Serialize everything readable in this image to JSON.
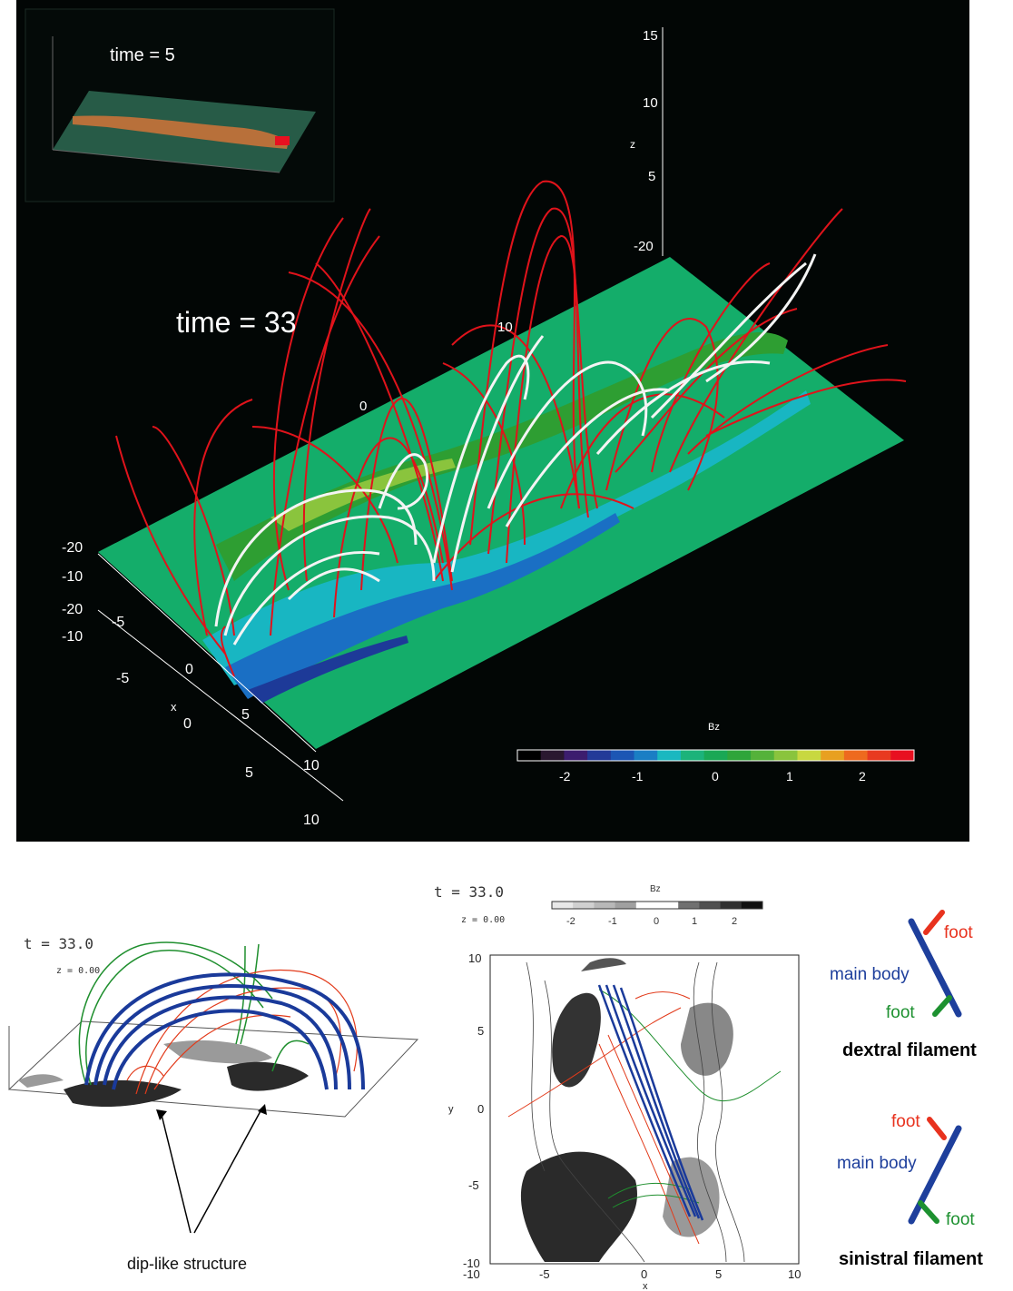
{
  "top_panel": {
    "inset_label": "time = 5",
    "main_label": "time = 33",
    "axis_x_title": "x",
    "axis_z_title": "z",
    "z_ticks": [
      "15",
      "10",
      "5",
      "-20"
    ],
    "x_ticks_left": [
      "-20",
      "-10",
      "-20",
      "-10",
      "-5",
      "-5",
      "0",
      "0",
      "5",
      "5",
      "10",
      "10"
    ],
    "inner_ticks": [
      "0",
      "10"
    ],
    "colorbar": {
      "title": "Bz",
      "ticks": [
        "-2",
        "-1",
        "0",
        "1",
        "2"
      ],
      "colors": [
        "#000000",
        "#2a1830",
        "#3c1d6e",
        "#233a98",
        "#1c56b4",
        "#1a7ec4",
        "#1ab8c0",
        "#1cb37a",
        "#1aa855",
        "#2fa53a",
        "#55b23a",
        "#8ac43d",
        "#c8d840",
        "#e8a020",
        "#ee6a1e",
        "#e83a20",
        "#e81020"
      ]
    },
    "colors": {
      "plane": "#14ad6a",
      "field_red": "#e0131b",
      "field_white": "#f4f4f4"
    }
  },
  "bottom_left": {
    "time_label": "t  =  33.0",
    "z_label": "z  =  0.00",
    "annotation": "dip-like structure",
    "colors": {
      "main_body": "#1a3a9a",
      "foot_green": "#1f8f2e",
      "foot_red": "#e23a1a"
    }
  },
  "bottom_right": {
    "time_label": "t  =  33.0",
    "z_label": "z  =  0.00",
    "colorbar_title": "Bz",
    "colorbar_ticks": [
      "-2",
      "-1",
      "0",
      "1",
      "2"
    ],
    "x_axis_label": "x",
    "y_axis_label": "y",
    "x_ticks": [
      "-10",
      "-5",
      "0",
      "5",
      "10"
    ],
    "y_ticks": [
      "10",
      "5",
      "0",
      "-5",
      "-10"
    ]
  },
  "legend": {
    "dextral": {
      "foot_top": "foot",
      "main_body": "main body",
      "foot_bottom": "foot",
      "title": "dextral filament"
    },
    "sinistral": {
      "foot_top": "foot",
      "main_body": "main body",
      "foot_bottom": "foot",
      "title": "sinistral filament"
    },
    "colors": {
      "main": "#1e3f9c",
      "red": "#e8321e",
      "green": "#1d9130"
    }
  }
}
